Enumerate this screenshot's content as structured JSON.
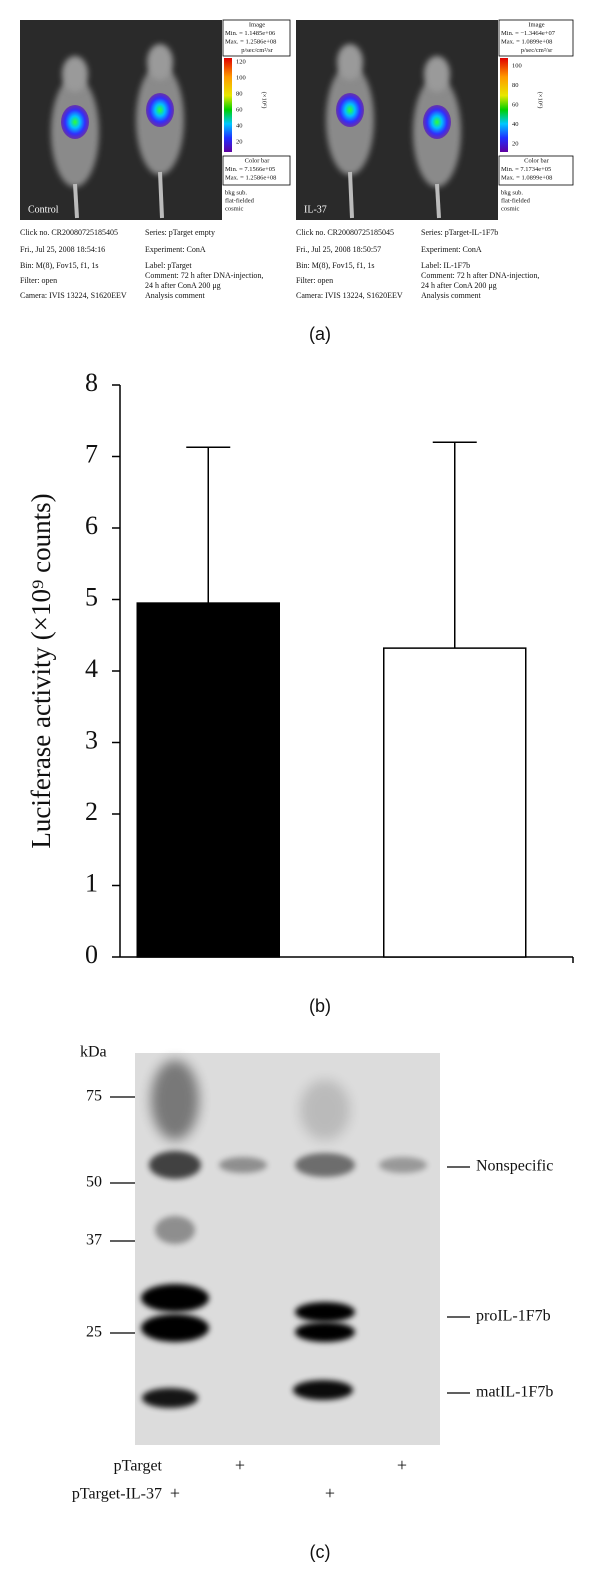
{
  "panel_a": {
    "caption": "(a)",
    "images": [
      {
        "label": "Control",
        "scale": {
          "title": "Image",
          "min": "Min. = 1.1485e+06",
          "max": "Max. = 1.2586e+08",
          "unit": "p/sec/cm²/sr",
          "ticks": [
            120,
            100,
            80,
            60,
            40,
            20
          ],
          "multiplier": "(×10⁶)"
        },
        "color_bar": {
          "title": "Color bar",
          "min": "Min. = 7.1566e+05",
          "max": "Max. = 1.2586e+08"
        },
        "processing": [
          "bkg sub.",
          "flat-fielded",
          "cosmic"
        ],
        "info_left": [
          "Click no. CR20080725185405",
          "Fri., Jul 25, 2008 18:54:16",
          "Bin: M(8), Fov15, f1, 1s",
          "Filter: open",
          "Camera: IVIS 13224, S1620EEV"
        ],
        "info_right": [
          "Series: pTarget empty",
          "Experiment: ConA",
          "Label: pTarget",
          "Comment: 72 h after DNA-injection,",
          "24 h after ConA 200 μg",
          "Analysis comment"
        ]
      },
      {
        "label": "IL-37",
        "scale": {
          "title": "Image",
          "min": "Min. = −1.3464e+07",
          "max": "Max. = 1.0899e+08",
          "unit": "p/sec/cm²/sr",
          "ticks": [
            100,
            80,
            60,
            40,
            20
          ],
          "multiplier": "(×10⁶)"
        },
        "color_bar": {
          "title": "Color bar",
          "min": "Min. = 7.1734e+05",
          "max": "Max. = 1.0899e+08"
        },
        "processing": [
          "bkg sub.",
          "flat-fielded",
          "cosmic"
        ],
        "info_left": [
          "Click no. CR20080725185045",
          "Fri., Jul 25, 2008 18:50:57",
          "Bin: M(8), Fov15, f1, 1s",
          "Filter: open",
          "Camera: IVIS 13224, S1620EEV"
        ],
        "info_right": [
          "Series: pTarget-IL-1F7b",
          "Experiment: ConA",
          "Label: IL-1F7b",
          "Comment: 72 h after DNA-injection,",
          "24 h after ConA 200 μg",
          "Analysis comment"
        ]
      }
    ]
  },
  "chart_data": {
    "type": "bar",
    "caption": "(b)",
    "ylabel": "Luciferase activity (×10⁹ counts)",
    "categories": [
      null,
      null
    ],
    "values": [
      4.95,
      4.32
    ],
    "errors": [
      2.18,
      2.88
    ],
    "colors": [
      "#000000",
      "#ffffff"
    ],
    "ylim": [
      0,
      8
    ],
    "yticks": [
      0,
      1,
      2,
      3,
      4,
      5,
      6,
      7,
      8
    ]
  },
  "panel_c": {
    "caption": "(c)",
    "unit_label": "kDa",
    "markers": [
      75,
      50,
      37,
      25
    ],
    "band_labels": [
      "Nonspecific",
      "proIL-1F7b",
      "matIL-1F7b"
    ],
    "rows": [
      {
        "name": "pTarget",
        "lanes": [
          null,
          "+",
          null,
          "+"
        ]
      },
      {
        "name": "pTarget-IL-37",
        "lanes": [
          "+",
          null,
          "+",
          null
        ]
      }
    ]
  }
}
